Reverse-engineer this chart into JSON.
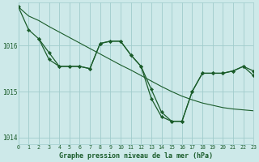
{
  "background_color": "#cde9e9",
  "grid_color": "#a0cccc",
  "line_color": "#1a5c2a",
  "marker_color": "#1a5c2a",
  "xlabel": "Graphe pression niveau de la mer (hPa)",
  "xlim": [
    0,
    23
  ],
  "ylim": [
    1013.85,
    1016.95
  ],
  "yticks": [
    1014,
    1015,
    1016
  ],
  "xticks": [
    0,
    1,
    2,
    3,
    4,
    5,
    6,
    7,
    8,
    9,
    10,
    11,
    12,
    13,
    14,
    15,
    16,
    17,
    18,
    19,
    20,
    21,
    22,
    23
  ],
  "line1_x": [
    0,
    1,
    2,
    3,
    4,
    5,
    6,
    7,
    8,
    9,
    10,
    11,
    12,
    13,
    14,
    15,
    16,
    17,
    18,
    19,
    20,
    21,
    22,
    23
  ],
  "line1_y": [
    1016.85,
    1016.35,
    1016.15,
    1015.7,
    1015.55,
    1015.55,
    1015.55,
    1015.5,
    1016.05,
    1016.1,
    1016.1,
    1015.8,
    1015.55,
    1014.85,
    1014.45,
    1014.35,
    1014.35,
    1015.0,
    1015.4,
    1015.4,
    1015.4,
    1015.45,
    1015.55,
    1015.45
  ],
  "line2_x": [
    0,
    1,
    2,
    3,
    4,
    5,
    6,
    7,
    8,
    9,
    10,
    11,
    12,
    13,
    14,
    15,
    16,
    17,
    18,
    19,
    20,
    21,
    22,
    23
  ],
  "line2_y": [
    1016.85,
    1016.65,
    1016.55,
    1016.42,
    1016.3,
    1016.18,
    1016.06,
    1015.94,
    1015.82,
    1015.7,
    1015.58,
    1015.47,
    1015.35,
    1015.23,
    1015.11,
    1015.0,
    1014.9,
    1014.82,
    1014.75,
    1014.7,
    1014.65,
    1014.62,
    1014.6,
    1014.58
  ],
  "line3_x": [
    2,
    3,
    4,
    5,
    6,
    7,
    8,
    9,
    10,
    11,
    12,
    13,
    14,
    15,
    16,
    17,
    18,
    19,
    20,
    21,
    22,
    23
  ],
  "line3_y": [
    1016.15,
    1015.85,
    1015.55,
    1015.55,
    1015.55,
    1015.5,
    1016.05,
    1016.1,
    1016.1,
    1015.8,
    1015.55,
    1015.05,
    1014.55,
    1014.35,
    1014.35,
    1015.0,
    1015.4,
    1015.4,
    1015.4,
    1015.45,
    1015.55,
    1015.35
  ]
}
